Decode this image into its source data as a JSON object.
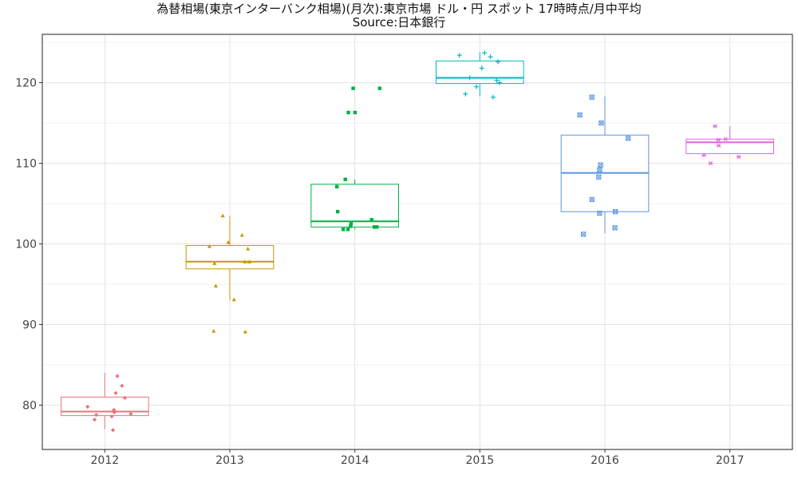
{
  "chart_data": {
    "type": "boxplot",
    "title": "為替相場(東京インターバンク相場)(月次):東京市場 ドル・円 スポット 17時時点/月中平均",
    "subtitle": "Source:日本銀行",
    "xlabel": "",
    "ylabel": "",
    "categories": [
      "2012",
      "2013",
      "2014",
      "2015",
      "2016",
      "2017"
    ],
    "y_ticks": [
      80,
      90,
      100,
      110,
      120
    ],
    "ylim": [
      74.5,
      126
    ],
    "grid": true,
    "colors": [
      "#e8747c",
      "#c49a00",
      "#00b140",
      "#00b8c0",
      "#5a95e0",
      "#e066d8"
    ],
    "markers": [
      "diamond",
      "triangle",
      "square",
      "plus",
      "square-x",
      "asterisk"
    ],
    "boxes": [
      {
        "category": "2012",
        "min": 77.0,
        "q1": 78.7,
        "median": 79.2,
        "q3": 81.0,
        "max": 84.0
      },
      {
        "category": "2013",
        "min": 93.0,
        "q1": 96.9,
        "median": 97.8,
        "q3": 99.8,
        "max": 103.5
      },
      {
        "category": "2014",
        "min": 101.8,
        "q1": 102.1,
        "median": 102.8,
        "q3": 107.4,
        "max": 108.0
      },
      {
        "category": "2015",
        "min": 118.3,
        "q1": 119.9,
        "median": 120.6,
        "q3": 122.7,
        "max": 123.8
      },
      {
        "category": "2016",
        "min": 101.3,
        "q1": 104.0,
        "median": 108.8,
        "q3": 113.5,
        "max": 118.3
      },
      {
        "category": "2017",
        "min": 111.2,
        "q1": 111.2,
        "median": 112.6,
        "q3": 113.0,
        "max": 114.6
      }
    ],
    "points": [
      {
        "category": "2012",
        "values": [
          76.9,
          78.2,
          78.6,
          78.9,
          79.1,
          79.4,
          79.8,
          80.9,
          81.5,
          82.4,
          83.6,
          78.8
        ]
      },
      {
        "category": "2013",
        "values": [
          89.1,
          89.2,
          93.1,
          94.8,
          97.6,
          97.8,
          97.8,
          99.4,
          99.7,
          100.2,
          101.1,
          103.5
        ]
      },
      {
        "category": "2014",
        "values": [
          101.8,
          101.8,
          102.1,
          102.1,
          102.2,
          102.5,
          103.0,
          104.0,
          107.1,
          108.0,
          116.3,
          116.3,
          119.3,
          119.3
        ]
      },
      {
        "category": "2015",
        "values": [
          118.2,
          118.6,
          119.5,
          120.0,
          120.3,
          120.6,
          121.8,
          122.6,
          123.2,
          123.4,
          123.7
        ]
      },
      {
        "category": "2016",
        "values": [
          101.2,
          102.0,
          103.8,
          104.0,
          105.5,
          108.3,
          109.2,
          109.8,
          113.1,
          115.0,
          116.0,
          118.2
        ]
      },
      {
        "category": "2017",
        "values": [
          110.0,
          110.8,
          111.0,
          112.2,
          112.9,
          113.0,
          114.6
        ]
      }
    ]
  }
}
